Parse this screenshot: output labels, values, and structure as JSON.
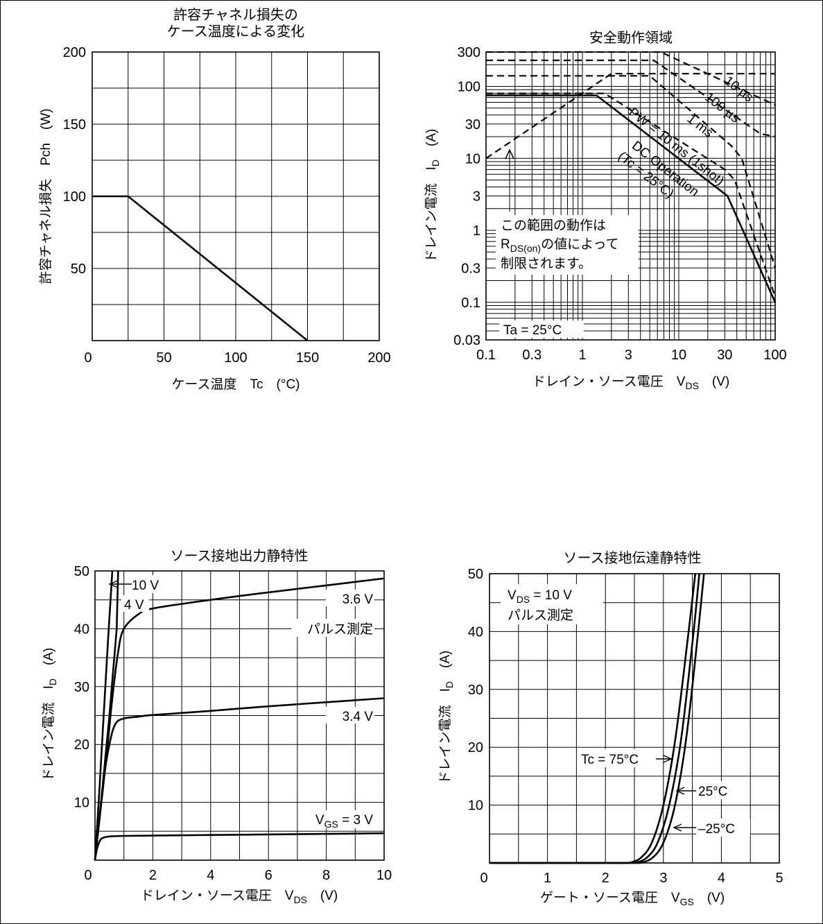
{
  "chart_data": [
    {
      "id": "pch",
      "type": "line",
      "title": "許容チャネル損失の",
      "subtitle": "ケース温度による変化",
      "xlabel": "ケース温度　Tc　(°C)",
      "ylabel": "許容チャネル損失　Pch　(W)",
      "xlim": [
        0,
        200
      ],
      "ylim": [
        0,
        200
      ],
      "x_ticks": [
        "0",
        "50",
        "100",
        "150",
        "200"
      ],
      "y_ticks": [
        "50",
        "100",
        "150",
        "200"
      ],
      "grid": true,
      "series": [
        {
          "x": [
            0,
            25,
            150
          ],
          "y": [
            100,
            100,
            0
          ]
        }
      ]
    },
    {
      "id": "soa",
      "type": "line",
      "title": "安全動作領域",
      "xlabel": "ドレイン・ソース電圧",
      "xsymbol": "V",
      "xsub": "DS",
      "xunit": "(V)",
      "ylabel": "ドレイン電流",
      "ysymbol": "I",
      "ysub": "D",
      "yunit": "(A)",
      "xscale": "log",
      "yscale": "log",
      "xlim": [
        0.1,
        100
      ],
      "ylim": [
        0.03,
        300
      ],
      "x_ticks": [
        "0.1",
        "0.3",
        "1",
        "3",
        "10",
        "30",
        "100"
      ],
      "y_ticks": [
        "0.03",
        "0.1",
        "0.3",
        "1",
        "3",
        "10",
        "30",
        "100",
        "300"
      ],
      "grid": true,
      "annotations": {
        "rds_line1": "この範囲の動作は",
        "rds_line2_sym": "R",
        "rds_line2_sub": "DS(on)",
        "rds_line2_rest": "の値によって",
        "rds_line3": "制限されます。",
        "ta": "Ta = 25°C"
      },
      "series": [
        {
          "name": "10 µs",
          "style": "dashed",
          "x": [
            0.1,
            6.5,
            100
          ],
          "y": [
            300,
            300,
            55
          ]
        },
        {
          "name": "100 µs",
          "style": "dashed",
          "x": [
            0.1,
            5.5,
            70,
            100
          ],
          "y": [
            230,
            230,
            22,
            20
          ]
        },
        {
          "name": "1 ms",
          "style": "dashed",
          "x": [
            0.1,
            5,
            35,
            45,
            100
          ],
          "y": [
            140,
            140,
            15,
            10,
            0.3
          ]
        },
        {
          "name": "PW = 10 ms (1shot)",
          "style": "dashed",
          "x": [
            0.1,
            1.7,
            30,
            38,
            100
          ],
          "y": [
            80,
            80,
            7,
            5,
            0.12
          ]
        },
        {
          "name": "DC Operation",
          "name2": "(Tc = 25°C)",
          "style": "solid",
          "x": [
            0.1,
            1.4,
            32,
            100
          ],
          "y": [
            75,
            75,
            3,
            0.1
          ]
        },
        {
          "name": "RDS(on) limit",
          "style": "dashed",
          "x": [
            0.1,
            2,
            100
          ],
          "y": [
            10,
            150,
            150
          ]
        }
      ]
    },
    {
      "id": "output",
      "type": "line",
      "title": "ソース接地出力静特性",
      "xlabel": "ドレイン・ソース電圧",
      "xsymbol": "V",
      "xsub": "DS",
      "xunit": "(V)",
      "ylabel": "ドレイン電流",
      "ysymbol": "I",
      "ysub": "D",
      "yunit": "(A)",
      "xlim": [
        0,
        10
      ],
      "ylim": [
        0,
        50
      ],
      "x_ticks": [
        "0",
        "2",
        "4",
        "6",
        "8",
        "10"
      ],
      "y_ticks": [
        "10",
        "20",
        "30",
        "40",
        "50"
      ],
      "grid": true,
      "annotations": {
        "pulse": "パルス測定",
        "vgs_sym": "V",
        "vgs_sub": "GS",
        "vgs_rest": " = 3 V"
      },
      "series": [
        {
          "name": "10 V",
          "x": [
            0,
            0.15,
            0.3,
            0.45,
            0.6
          ],
          "y": [
            0,
            12,
            25,
            38,
            50
          ]
        },
        {
          "name": "4 V",
          "x": [
            0,
            0.25,
            0.5,
            0.75,
            0.8
          ],
          "y": [
            0,
            12,
            25,
            40,
            50
          ]
        },
        {
          "name": "3.6 V",
          "x": [
            0,
            0.2,
            0.4,
            0.6,
            0.8,
            1.0,
            1.5,
            2,
            4,
            6,
            8,
            10
          ],
          "y": [
            0,
            9,
            18,
            28,
            36,
            40,
            42.5,
            43.5,
            45,
            46.3,
            47.5,
            48.7
          ]
        },
        {
          "name": "3.4 V",
          "x": [
            0,
            0.15,
            0.3,
            0.5,
            0.7,
            1.0,
            1.5,
            2,
            4,
            6,
            8,
            10
          ],
          "y": [
            0,
            7,
            14,
            20,
            23.5,
            24.5,
            24.8,
            25.1,
            25.8,
            26.6,
            27.3,
            28
          ]
        },
        {
          "name": "3 V",
          "x": [
            0,
            0.05,
            0.1,
            0.2,
            0.3,
            0.5,
            1,
            2,
            4,
            6,
            8,
            10
          ],
          "y": [
            0,
            1.5,
            2.5,
            3.6,
            3.9,
            4.1,
            4.2,
            4.25,
            4.35,
            4.45,
            4.55,
            4.65
          ]
        }
      ]
    },
    {
      "id": "transfer",
      "type": "line",
      "title": "ソース接地伝達静特性",
      "xlabel": "ゲート・ソース電圧",
      "xsymbol": "V",
      "xsub": "GS",
      "xunit": "(V)",
      "ylabel": "ドレイン電流",
      "ysymbol": "I",
      "ysub": "D",
      "yunit": "(A)",
      "xlim": [
        0,
        5
      ],
      "ylim": [
        0,
        50
      ],
      "x_ticks": [
        "0",
        "1",
        "2",
        "3",
        "4",
        "5"
      ],
      "y_ticks": [
        "10",
        "20",
        "30",
        "40",
        "50"
      ],
      "grid": true,
      "annotations": {
        "vds_sym": "V",
        "vds_sub": "DS",
        "vds_rest": " = 10 V",
        "pulse": "パルス測定"
      },
      "series": [
        {
          "name": "Tc = 75°C",
          "x": [
            0,
            2.4,
            2.6,
            2.8,
            3.0,
            3.2,
            3.4,
            3.55
          ],
          "y": [
            0,
            0,
            0.8,
            3.5,
            10,
            21,
            37,
            50
          ]
        },
        {
          "name": "25°C",
          "x": [
            0,
            2.5,
            2.7,
            2.9,
            3.1,
            3.3,
            3.5,
            3.62
          ],
          "y": [
            0,
            0,
            0.8,
            3.5,
            10,
            21,
            38,
            50
          ]
        },
        {
          "name": "–25°C",
          "x": [
            0,
            2.6,
            2.8,
            3.0,
            3.2,
            3.4,
            3.6,
            3.7
          ],
          "y": [
            0,
            0,
            0.8,
            3.5,
            10,
            22,
            40,
            50
          ]
        }
      ]
    }
  ]
}
